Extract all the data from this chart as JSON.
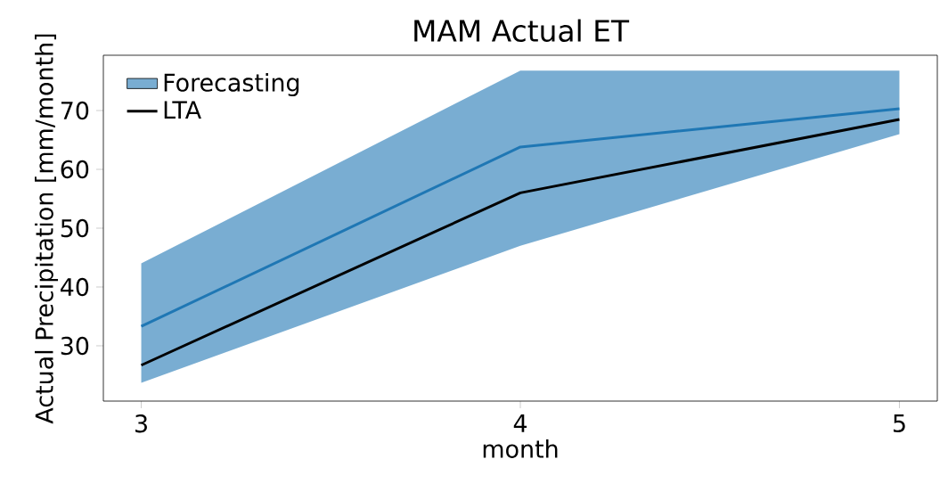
{
  "chart_data": {
    "type": "line",
    "title": "MAM Actual ET",
    "xlabel": "month",
    "ylabel": "Actual Precipitation [mm/month]",
    "x": [
      3,
      4,
      5
    ],
    "xlim": [
      2.9,
      5.1
    ],
    "xticks": [
      3,
      4,
      5
    ],
    "ylim": [
      20.6,
      79.4
    ],
    "yticks": [
      30,
      40,
      50,
      60,
      70
    ],
    "series": [
      {
        "name": "Forecasting",
        "color": "#1f77b4",
        "values": [
          33.3,
          63.8,
          70.3
        ],
        "lower": [
          23.7,
          47.0,
          66.0
        ],
        "upper": [
          44.0,
          76.8,
          76.8
        ]
      },
      {
        "name": "LTA",
        "color": "#000000",
        "values": [
          26.7,
          56.0,
          68.5
        ]
      }
    ],
    "legend": "top left",
    "grid": false
  }
}
